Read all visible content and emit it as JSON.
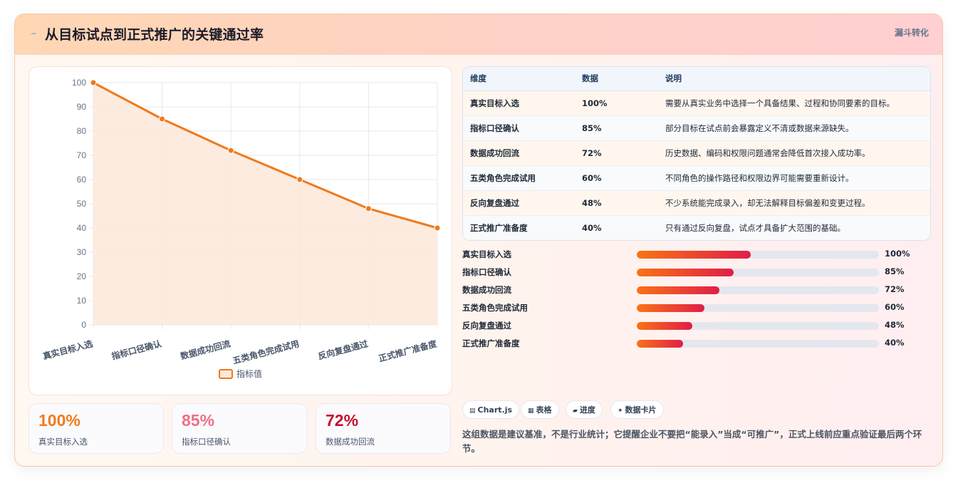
{
  "header": {
    "icon": "lightning-icon",
    "title": "从目标试点到正式推广的关键通过率",
    "tag": "漏斗转化"
  },
  "chart_data": {
    "type": "area",
    "categories": [
      "真实目标入选",
      "指标口径确认",
      "数据成功回流",
      "五类角色完成试用",
      "反向复盘通过",
      "正式推广准备度"
    ],
    "series": [
      {
        "name": "指标值",
        "values": [
          100,
          85,
          72,
          60,
          48,
          40
        ]
      }
    ],
    "ylim": [
      0,
      100
    ],
    "yticks": [
      0,
      10,
      20,
      30,
      40,
      50,
      60,
      70,
      80,
      90,
      100
    ],
    "grid": true,
    "legend": "bottom",
    "colors": {
      "line": "#ee7a1e",
      "fill": "#fde8d9"
    }
  },
  "stats": [
    {
      "value": "100%",
      "label": "真实目标入选",
      "color": "#f07b1a"
    },
    {
      "value": "85%",
      "label": "指标口径确认",
      "color": "#ef6f86"
    },
    {
      "value": "72%",
      "label": "数据成功回流",
      "color": "#c8102e"
    }
  ],
  "table": {
    "headers": [
      "维度",
      "数据",
      "说明"
    ],
    "rows": [
      {
        "dim": "真实目标入选",
        "val": "100%",
        "desc": "需要从真实业务中选择一个具备结果、过程和协同要素的目标。"
      },
      {
        "dim": "指标口径确认",
        "val": "85%",
        "desc": "部分目标在试点前会暴露定义不清或数据来源缺失。"
      },
      {
        "dim": "数据成功回流",
        "val": "72%",
        "desc": "历史数据、编码和权限问题通常会降低首次接入成功率。"
      },
      {
        "dim": "五类角色完成试用",
        "val": "60%",
        "desc": "不同角色的操作路径和权限边界可能需要重新设计。"
      },
      {
        "dim": "反向复盘通过",
        "val": "48%",
        "desc": "不少系统能完成录入，却无法解释目标偏差和变更过程。"
      },
      {
        "dim": "正式推广准备度",
        "val": "40%",
        "desc": "只有通过反向复盘，试点才具备扩大范围的基础。"
      }
    ]
  },
  "progress": [
    {
      "label": "真实目标入选",
      "pct_text": "100%",
      "fraction": 0.47
    },
    {
      "label": "指标口径确认",
      "pct_text": "85%",
      "fraction": 0.4
    },
    {
      "label": "数据成功回流",
      "pct_text": "72%",
      "fraction": 0.34
    },
    {
      "label": "五类角色完成试用",
      "pct_text": "60%",
      "fraction": 0.28
    },
    {
      "label": "反向复盘通过",
      "pct_text": "48%",
      "fraction": 0.23
    },
    {
      "label": "正式推广准备度",
      "pct_text": "40%",
      "fraction": 0.19
    }
  ],
  "chips": [
    {
      "icon": "chart-icon",
      "glyph": "▤",
      "label": "Chart.js"
    },
    {
      "icon": "table-icon",
      "glyph": "▦",
      "label": "表格"
    },
    {
      "icon": "progress-icon",
      "glyph": "▰",
      "label": "进度"
    },
    {
      "icon": "sparkle-icon",
      "glyph": "✦",
      "label": "数据卡片"
    }
  ],
  "note": "这组数据是建议基准，不是行业统计；它提醒企业不要把“能录入”当成“可推广”，正式上线前应重点验证最后两个环节。"
}
